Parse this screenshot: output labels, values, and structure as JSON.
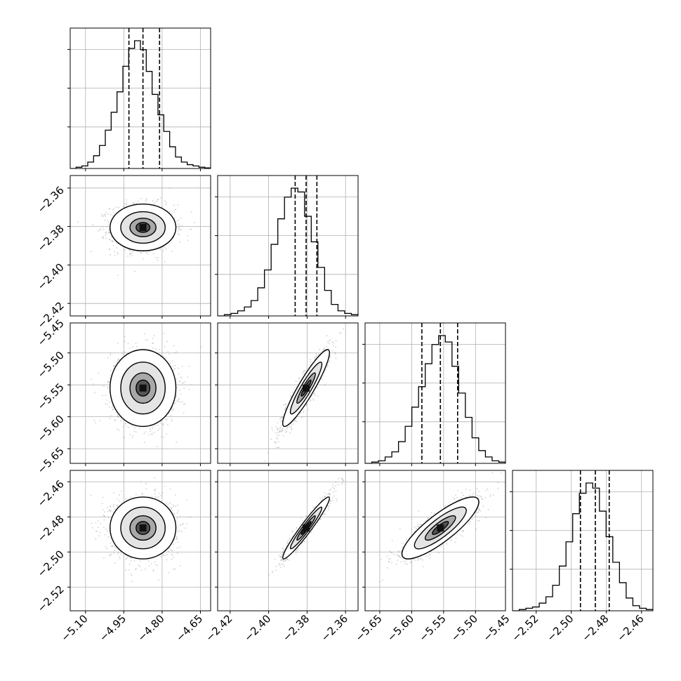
{
  "chart_data": {
    "type": "corner",
    "parameters": [
      {
        "range": [
          -5.16,
          -4.61
        ],
        "ticks": [
          -5.1,
          -4.95,
          -4.8,
          -4.65
        ],
        "tick_labels": [
          "−5.10",
          "−4.95",
          "−4.80",
          "−4.65"
        ],
        "quantiles": [
          -4.93,
          -4.875,
          -4.81
        ],
        "histogram": [
          0,
          0.01,
          0.02,
          0.05,
          0.1,
          0.18,
          0.3,
          0.44,
          0.6,
          0.8,
          0.94,
          1.0,
          0.93,
          0.76,
          0.58,
          0.42,
          0.29,
          0.17,
          0.09,
          0.05,
          0.03,
          0.02,
          0.01,
          0.005
        ]
      },
      {
        "range": [
          -2.4265,
          -2.3535
        ],
        "ticks": [
          -2.42,
          -2.4,
          -2.38,
          -2.36
        ],
        "tick_labels": [
          "−2.42",
          "−2.40",
          "−2.38",
          "−2.36"
        ],
        "quantiles": [
          -2.3862,
          -2.3805,
          -2.3749
        ],
        "histogram": [
          0,
          0.01,
          0.02,
          0.04,
          0.07,
          0.12,
          0.22,
          0.36,
          0.56,
          0.76,
          0.93,
          1.0,
          0.97,
          0.78,
          0.58,
          0.38,
          0.2,
          0.09,
          0.04,
          0.02,
          0.01
        ]
      },
      {
        "range": [
          -5.673,
          -5.453
        ],
        "ticks": [
          -5.65,
          -5.6,
          -5.55,
          -5.5,
          -5.45
        ],
        "tick_labels": [
          "−5.65",
          "−5.60",
          "−5.55",
          "−5.50",
          "−5.45"
        ],
        "quantiles": [
          -5.584,
          -5.555,
          -5.528
        ],
        "histogram": [
          0,
          0.01,
          0.02,
          0.05,
          0.09,
          0.17,
          0.29,
          0.44,
          0.6,
          0.78,
          0.93,
          1.0,
          0.95,
          0.76,
          0.55,
          0.36,
          0.2,
          0.1,
          0.05,
          0.02,
          0.01
        ]
      },
      {
        "range": [
          -2.5335,
          -2.4535
        ],
        "ticks": [
          -2.52,
          -2.5,
          -2.48,
          -2.46
        ],
        "tick_labels": [
          "−2.52",
          "−2.50",
          "−2.48",
          "−2.46"
        ],
        "quantiles": [
          -2.4948,
          -2.4863,
          -2.4784
        ],
        "histogram": [
          0,
          0.01,
          0.02,
          0.03,
          0.06,
          0.11,
          0.2,
          0.35,
          0.54,
          0.76,
          0.92,
          1.0,
          0.96,
          0.78,
          0.58,
          0.38,
          0.22,
          0.1,
          0.04,
          0.02,
          0.01
        ]
      }
    ],
    "correlations": [
      [
        1.0,
        0.0,
        0.0,
        0.0
      ],
      [
        0.0,
        1.0,
        0.92,
        0.96
      ],
      [
        0.0,
        0.92,
        1.0,
        0.84
      ],
      [
        0.0,
        0.96,
        0.84,
        1.0
      ]
    ],
    "samples_per_panel": 1400,
    "grid": true,
    "quantile_line_style": "dashed"
  }
}
